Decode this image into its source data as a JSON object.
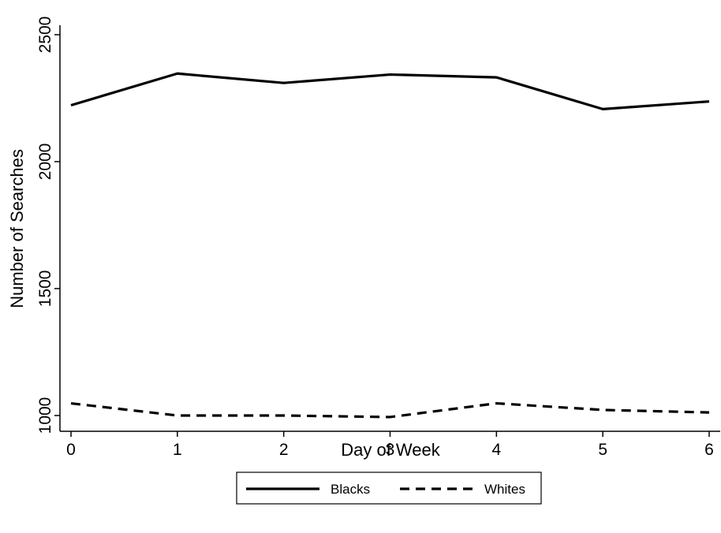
{
  "chart_data": {
    "type": "line",
    "title": "",
    "xlabel": "Day of Week",
    "ylabel": "Number of Searches",
    "x": [
      0,
      1,
      2,
      3,
      4,
      5,
      6
    ],
    "xlim": [
      0,
      6
    ],
    "ylim": [
      950,
      2510
    ],
    "x_ticks": [
      0,
      1,
      2,
      3,
      4,
      5,
      6
    ],
    "x_tick_labels": [
      "0",
      "1",
      "2",
      "3",
      "4",
      "5",
      "6"
    ],
    "y_ticks": [
      1000,
      1500,
      2000,
      2500
    ],
    "y_tick_labels": [
      "1000",
      "1500",
      "2000",
      "2500"
    ],
    "grid": false,
    "legend_position": "bottom",
    "series": [
      {
        "name": "Blacks",
        "style": "solid",
        "color": "#000000",
        "values": [
          2222,
          2347,
          2310,
          2343,
          2332,
          2207,
          2237
        ]
      },
      {
        "name": "Whites",
        "style": "dashed",
        "color": "#000000",
        "values": [
          1048,
          1000,
          1000,
          994,
          1048,
          1022,
          1012
        ]
      }
    ]
  }
}
